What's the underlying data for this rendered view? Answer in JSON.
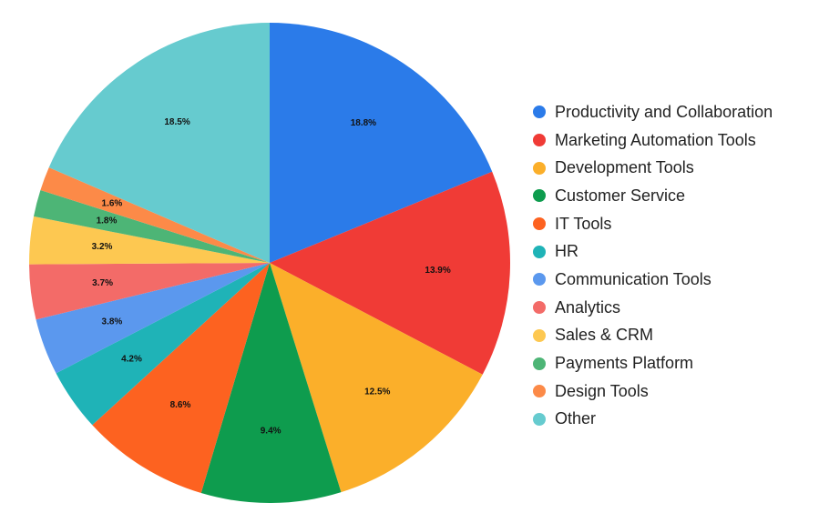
{
  "chart_data": {
    "type": "pie",
    "title": "",
    "legend_position": "right",
    "slices": [
      {
        "label": "Productivity and Collaboration",
        "value": 18.8,
        "value_label": "18.8%",
        "color": "#2B7BE9"
      },
      {
        "label": "Marketing Automation Tools",
        "value": 13.9,
        "value_label": "13.9%",
        "color": "#F03B36"
      },
      {
        "label": "Development Tools",
        "value": 12.5,
        "value_label": "12.5%",
        "color": "#FBAF2A"
      },
      {
        "label": "Customer Service",
        "value": 9.4,
        "value_label": "9.4%",
        "color": "#0E9C4E"
      },
      {
        "label": "IT Tools",
        "value": 8.6,
        "value_label": "8.6%",
        "color": "#FD6220"
      },
      {
        "label": "HR",
        "value": 4.2,
        "value_label": "4.2%",
        "color": "#1FB3B7"
      },
      {
        "label": "Communication Tools",
        "value": 3.8,
        "value_label": "3.8%",
        "color": "#5B98EE"
      },
      {
        "label": "Analytics",
        "value": 3.7,
        "value_label": "3.7%",
        "color": "#F36B68"
      },
      {
        "label": "Sales & CRM",
        "value": 3.2,
        "value_label": "3.2%",
        "color": "#FDC851"
      },
      {
        "label": "Payments Platform",
        "value": 1.8,
        "value_label": "1.8%",
        "color": "#4DB576"
      },
      {
        "label": "Design Tools",
        "value": 1.6,
        "value_label": "1.6%",
        "color": "#FC8A48"
      },
      {
        "label": "Other",
        "value": 18.5,
        "value_label": "18.5%",
        "color": "#66CBCF"
      }
    ]
  }
}
